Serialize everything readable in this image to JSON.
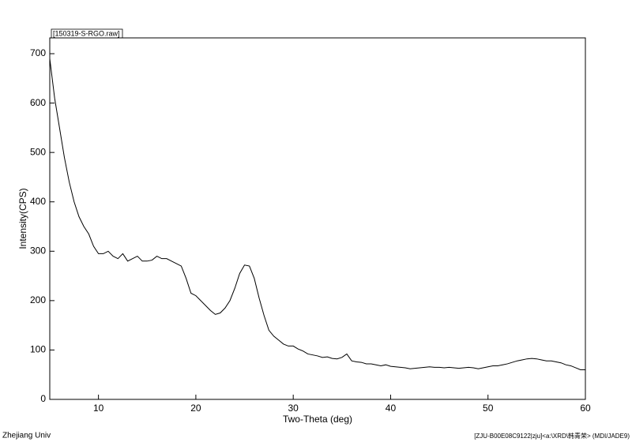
{
  "chart_data": {
    "type": "line",
    "title": "[150319-S-RGO.raw]",
    "xlabel": "Two-Theta (deg)",
    "ylabel": "Intensity(CPS)",
    "footer_left": "Zhejiang Univ",
    "footer_right": "[ZJU-B00E08C9122|zju]<a:\\XRD\\韩青荣> (MDI/JADE9)",
    "xlim": [
      5,
      60
    ],
    "ylim": [
      0,
      732
    ],
    "xticks": [
      10,
      20,
      30,
      40,
      50,
      60
    ],
    "yticks": [
      0,
      100,
      200,
      300,
      400,
      500,
      600,
      700
    ],
    "x": [
      5,
      5.5,
      6,
      6.5,
      7,
      7.5,
      8,
      8.5,
      9,
      9.5,
      10,
      10.5,
      11,
      11.5,
      12,
      12.5,
      13,
      13.5,
      14,
      14.5,
      15,
      15.5,
      16,
      16.5,
      17,
      17.5,
      18,
      18.5,
      19,
      19.5,
      20,
      20.5,
      21,
      21.5,
      22,
      22.5,
      23,
      23.5,
      24,
      24.5,
      25,
      25.5,
      26,
      26.5,
      27,
      27.5,
      28,
      28.5,
      29,
      29.5,
      30,
      30.5,
      31,
      31.5,
      32,
      32.5,
      33,
      33.5,
      34,
      34.5,
      35,
      35.5,
      36,
      36.5,
      37,
      37.5,
      38,
      38.5,
      39,
      39.5,
      40,
      40.5,
      41,
      41.5,
      42,
      42.5,
      43,
      43.5,
      44,
      44.5,
      45,
      45.5,
      46,
      46.5,
      47,
      47.5,
      48,
      48.5,
      49,
      49.5,
      50,
      50.5,
      51,
      51.5,
      52,
      52.5,
      53,
      53.5,
      54,
      54.5,
      55,
      55.5,
      56,
      56.5,
      57,
      57.5,
      58,
      58.5,
      59,
      59.5,
      60
    ],
    "series": [
      {
        "color": "#000000",
        "values": [
          690,
          610,
          550,
          490,
          440,
          400,
          370,
          350,
          335,
          310,
          295,
          295,
          300,
          290,
          285,
          295,
          280,
          285,
          290,
          280,
          280,
          282,
          290,
          285,
          285,
          280,
          275,
          270,
          245,
          215,
          210,
          200,
          190,
          180,
          172,
          175,
          185,
          200,
          225,
          255,
          272,
          270,
          245,
          205,
          170,
          140,
          128,
          120,
          112,
          108,
          108,
          102,
          98,
          92,
          90,
          88,
          85,
          86,
          83,
          82,
          85,
          92,
          78,
          76,
          75,
          72,
          72,
          70,
          68,
          70,
          67,
          66,
          65,
          64,
          62,
          63,
          64,
          65,
          66,
          65,
          65,
          64,
          65,
          64,
          63,
          64,
          65,
          64,
          62,
          64,
          66,
          68,
          68,
          70,
          72,
          75,
          78,
          80,
          82,
          83,
          82,
          80,
          78,
          78,
          76,
          74,
          70,
          68,
          64,
          60,
          60
        ]
      }
    ]
  }
}
